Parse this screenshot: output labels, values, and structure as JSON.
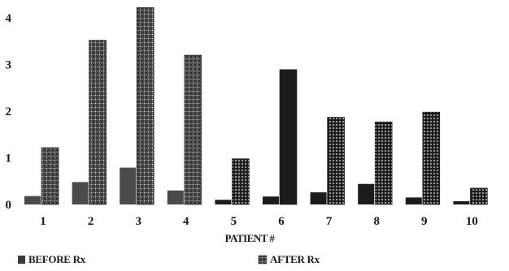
{
  "chart_data": {
    "type": "bar",
    "title": "",
    "xlabel": "PATIENT #",
    "ylabel": "",
    "ylim": [
      0,
      4.2
    ],
    "yticks": [
      0,
      1,
      2,
      3,
      4
    ],
    "categories": [
      "1",
      "2",
      "3",
      "4",
      "5",
      "6",
      "7",
      "8",
      "9",
      "10"
    ],
    "series": [
      {
        "name": "BEFORE Rx",
        "values": [
          0.18,
          0.48,
          0.79,
          0.3,
          0.1,
          0.17,
          0.26,
          0.44,
          0.15,
          0.07
        ]
      },
      {
        "name": "AFTER Rx",
        "values": [
          1.22,
          3.52,
          4.22,
          3.2,
          0.98,
          2.89,
          1.87,
          1.77,
          1.98,
          0.35
        ]
      }
    ],
    "legend_position": "bottom",
    "grid": false,
    "colors": {
      "before_light": "#4a4a4a",
      "before_dark": "#1c1c1c",
      "after_cross_light": "#3a3a3a",
      "after_dot_dark": "#222222",
      "axis_text": "#1a1a1a"
    }
  }
}
